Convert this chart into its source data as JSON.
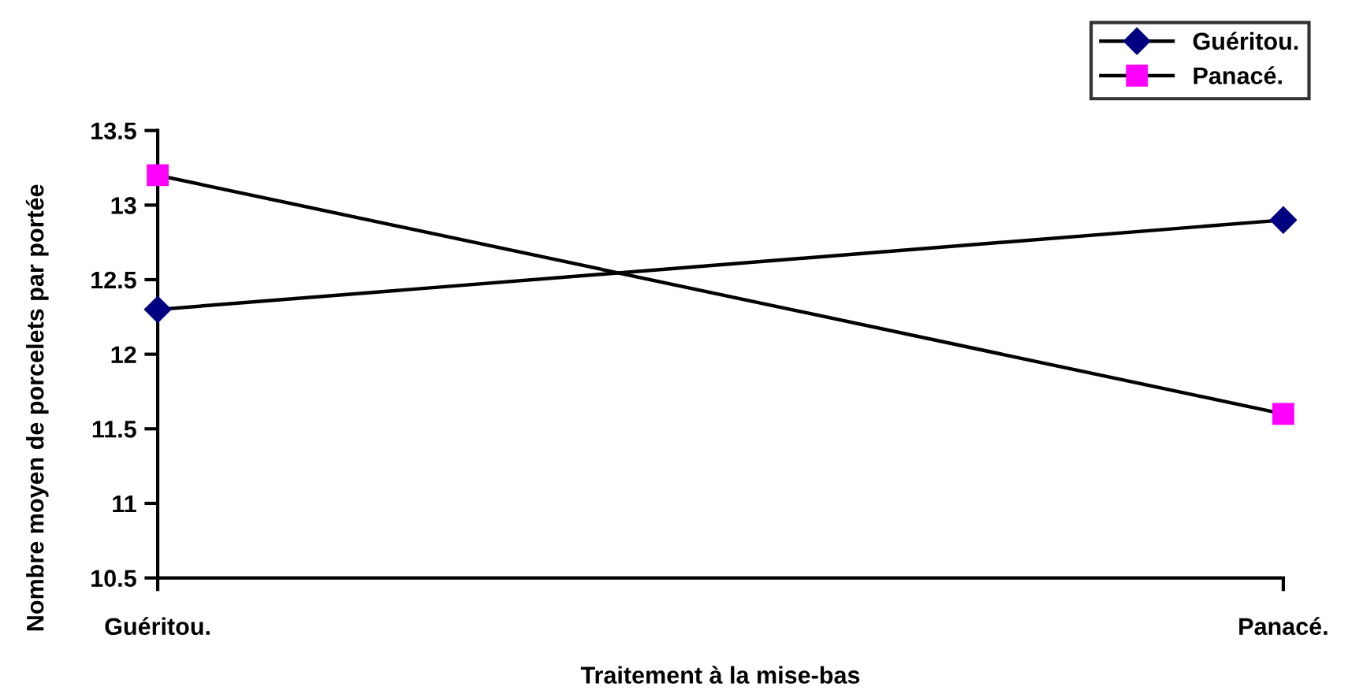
{
  "chart_data": {
    "type": "line",
    "xlabel": "Traitement à la mise-bas",
    "ylabel": "Nombre moyen de porcelets par portée",
    "categories": [
      "Guéritou.",
      "Panacé."
    ],
    "series": [
      {
        "name": "Guéritou.",
        "color": "#000080",
        "marker": "diamond",
        "values": [
          12.3,
          12.9
        ]
      },
      {
        "name": "Panacé.",
        "color": "#ff00ff",
        "marker": "square",
        "values": [
          13.2,
          11.6
        ]
      }
    ],
    "ylim": [
      10.5,
      13.5
    ],
    "yticks": [
      10.5,
      11,
      11.5,
      12,
      12.5,
      13,
      13.5
    ],
    "grid": false,
    "legend": "top right",
    "line_style": "solid"
  }
}
